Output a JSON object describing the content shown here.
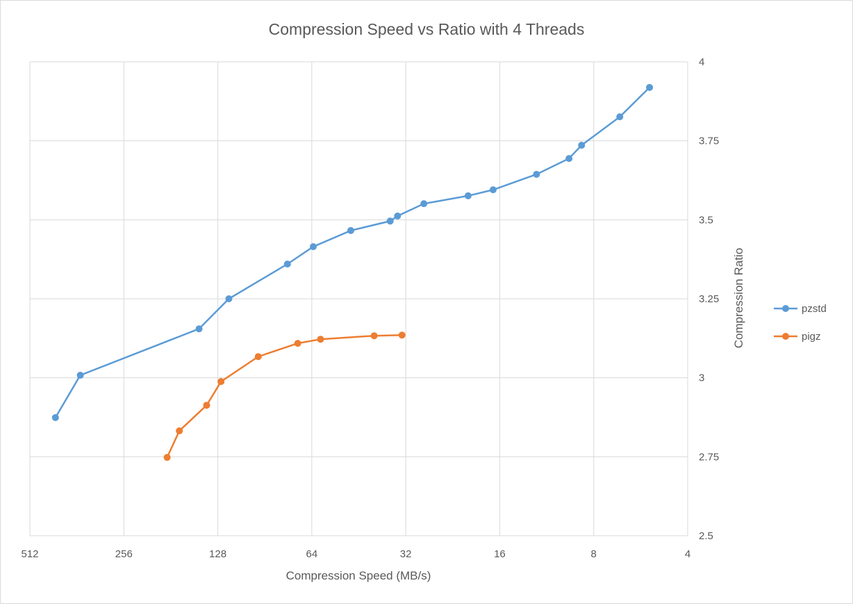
{
  "chart_data": {
    "type": "line",
    "title": "Compression Speed vs Ratio with 4 Threads",
    "xlabel": "Compression Speed (MB/s)",
    "ylabel": "Compression Ratio",
    "x_scale": "log2, reversed",
    "xlim": [
      512,
      4
    ],
    "x_ticks": [
      "512",
      "256",
      "128",
      "64",
      "32",
      "16",
      "8",
      "4"
    ],
    "ylim": [
      2.5,
      4
    ],
    "y_axis_side": "right",
    "y_ticks": [
      "2.5",
      "2.75",
      "3",
      "3.25",
      "3.5",
      "3.75",
      "4"
    ],
    "grid": true,
    "legend": "right",
    "series": [
      {
        "name": "pzstd",
        "color": "#5b9bd5",
        "x": [
          424,
          353,
          147,
          118,
          76.6,
          63.3,
          48,
          35.9,
          34,
          28,
          20.2,
          16.8,
          12.2,
          9.6,
          8.75,
          6.6,
          5.3
        ],
        "y": [
          2.874,
          3.008,
          3.155,
          3.25,
          3.36,
          3.415,
          3.466,
          3.496,
          3.512,
          3.551,
          3.576,
          3.595,
          3.644,
          3.694,
          3.736,
          3.826,
          3.919
        ]
      },
      {
        "name": "pigz",
        "color": "#ed7d31",
        "x": [
          186,
          170,
          139,
          125,
          95,
          71,
          60,
          40.4,
          32.9
        ],
        "y": [
          2.748,
          2.832,
          2.913,
          2.988,
          3.067,
          3.109,
          3.122,
          3.133,
          3.135
        ]
      }
    ]
  }
}
